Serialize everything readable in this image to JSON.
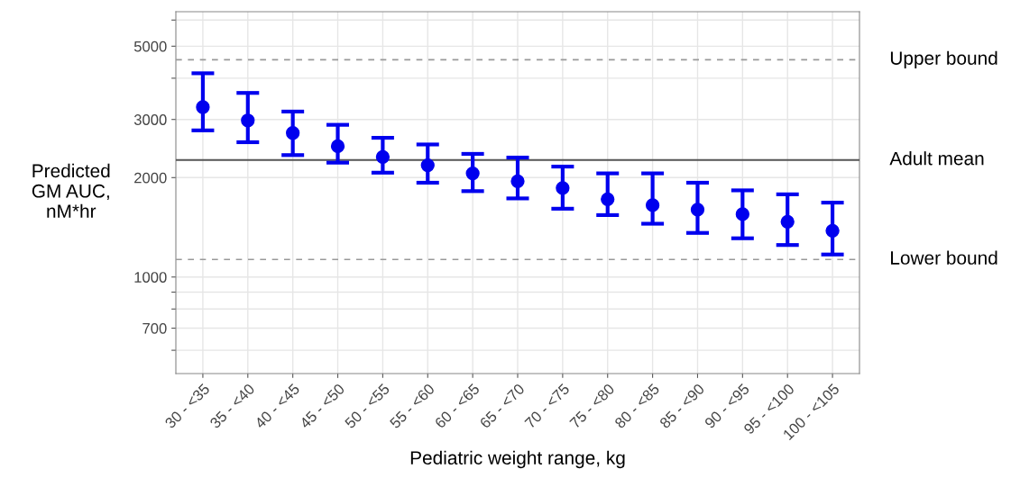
{
  "chart_data": {
    "type": "scatter",
    "xlabel": "Pediatric weight range, kg",
    "ylabel": "Predicted\nGM AUC,\nnM*hr",
    "categories": [
      "30 - <35",
      "35 - <40",
      "40 - <45",
      "45 - <50",
      "50 - <55",
      "55 - <60",
      "60 - <65",
      "65 - <70",
      "70 - <75",
      "75 - <80",
      "80 - <85",
      "85 - <90",
      "90 - <95",
      "95 - <100",
      "100 - <105"
    ],
    "series": [
      {
        "color": "#0000ee",
        "values": [
          3270,
          2980,
          2730,
          2490,
          2310,
          2180,
          2060,
          1950,
          1860,
          1720,
          1650,
          1600,
          1550,
          1470,
          1380
        ],
        "errors": [
          [
            2780,
            4140
          ],
          [
            2560,
            3610
          ],
          [
            2340,
            3170
          ],
          [
            2220,
            2890
          ],
          [
            2070,
            2640
          ],
          [
            1930,
            2520
          ],
          [
            1820,
            2360
          ],
          [
            1730,
            2300
          ],
          [
            1610,
            2160
          ],
          [
            1540,
            2060
          ],
          [
            1450,
            2060
          ],
          [
            1360,
            1930
          ],
          [
            1310,
            1830
          ],
          [
            1250,
            1780
          ],
          [
            1170,
            1680
          ]
        ]
      }
    ],
    "log": "y",
    "ylim": [
      510,
      6360
    ],
    "yticks": [
      {
        "value": 600,
        "label": null
      },
      700,
      {
        "value": 800,
        "label": null
      },
      {
        "value": 900,
        "label": null
      },
      1000,
      2000,
      3000,
      {
        "value": 4000,
        "label": null
      },
      5000,
      {
        "value": 6000,
        "label": null
      }
    ],
    "ref_lines": [
      {
        "axis": "y",
        "value": 4550,
        "label": "Upper bound",
        "color": "#999999",
        "line_style": "dashed"
      },
      {
        "axis": "y",
        "value": 2260,
        "label": "Adult mean",
        "color": "#555555",
        "line_style": "solid"
      },
      {
        "axis": "y",
        "value": 1130,
        "label": "Lower bound",
        "color": "#999999",
        "line_style": "dashed"
      }
    ],
    "grid": true,
    "marker": "circle"
  }
}
